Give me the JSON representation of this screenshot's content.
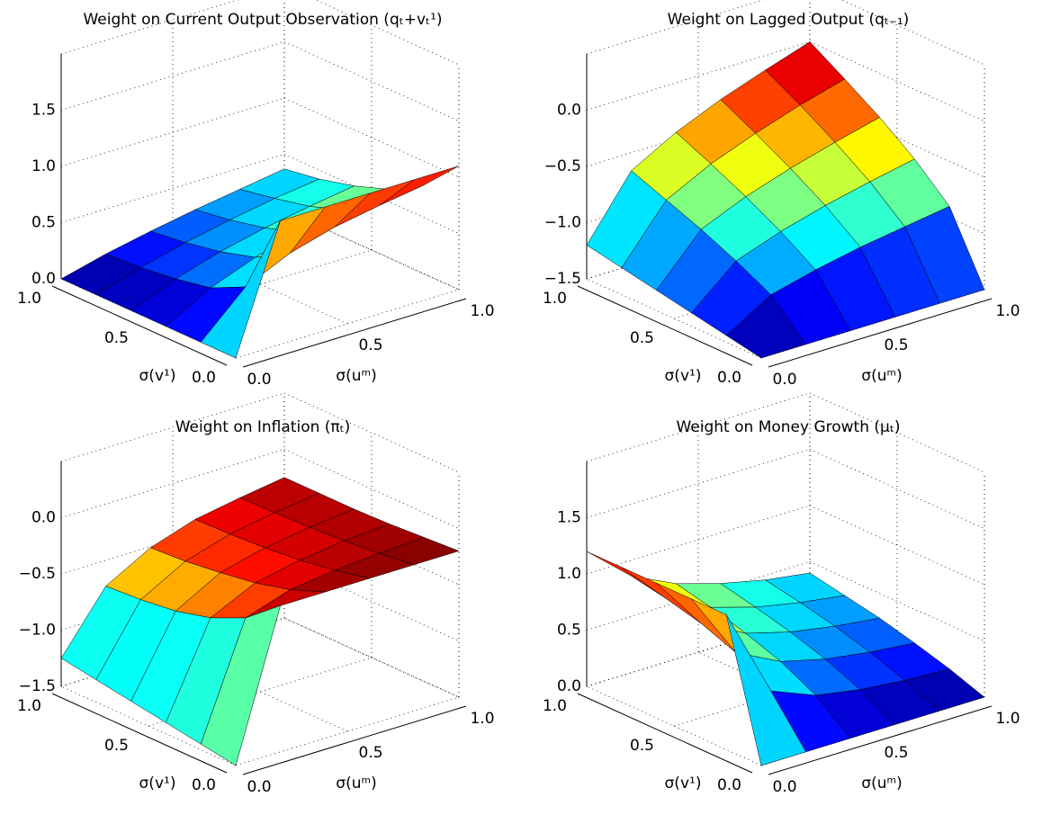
{
  "chart_data": [
    {
      "type": "surface",
      "title": "Weight on Current Output Observation (qₜ+vₜ¹)",
      "xlabel": "σ(uᵐ)",
      "ylabel": "σ(v¹)",
      "colormap": "jet",
      "x": [
        0,
        0.2,
        0.4,
        0.6,
        0.8,
        1
      ],
      "y": [
        0,
        0.2,
        0.4,
        0.6,
        0.8,
        1
      ],
      "z": [
        [
          0,
          1.1,
          1.1,
          1.1,
          1.1,
          1.1
        ],
        [
          0,
          0.37,
          0.55,
          0.66,
          0.73,
          0.79
        ],
        [
          0,
          0.22,
          0.37,
          0.47,
          0.55,
          0.61
        ],
        [
          0,
          0.16,
          0.28,
          0.37,
          0.44,
          0.5
        ],
        [
          0,
          0.12,
          0.22,
          0.3,
          0.37,
          0.42
        ],
        [
          0,
          0.1,
          0.18,
          0.25,
          0.31,
          0.37
        ]
      ],
      "xlim": [
        0,
        1
      ],
      "ylim": [
        0,
        1
      ],
      "zlim": [
        0,
        2
      ],
      "xticks": [
        {
          "value": 0,
          "label": "0.0"
        },
        0.5,
        {
          "value": 1,
          "label": "1.0"
        }
      ],
      "yticks": [
        {
          "value": 0,
          "label": "0.0"
        },
        0.5,
        {
          "value": 1,
          "label": "1.0"
        }
      ],
      "zticks": [
        {
          "value": 0,
          "label": "0.0"
        },
        0.5,
        {
          "value": 1,
          "label": "1.0"
        },
        1.5
      ],
      "grid": true
    },
    {
      "type": "surface",
      "title": "Weight on Lagged Output (qₜ₋₁)",
      "xlabel": "σ(uᵐ)",
      "ylabel": "σ(v¹)",
      "colormap": "jet",
      "x": [
        0,
        0.2,
        0.4,
        0.6,
        0.8,
        1
      ],
      "y": [
        0,
        0.2,
        0.4,
        0.6,
        0.8,
        1
      ],
      "z": [
        [
          -1.5,
          -1.5,
          -1.5,
          -1.5,
          -1.5,
          -1.5
        ],
        [
          -1.44,
          -1.2,
          -1.1,
          -1.02,
          -0.96,
          -0.9
        ],
        [
          -1.38,
          -1.04,
          -0.9,
          -0.79,
          -0.7,
          -0.62
        ],
        [
          -1.32,
          -0.9,
          -0.73,
          -0.6,
          -0.49,
          -0.39
        ],
        [
          -1.26,
          -0.78,
          -0.58,
          -0.43,
          -0.3,
          -0.19
        ],
        [
          -1.2,
          -0.66,
          -0.44,
          -0.27,
          -0.13,
          0
        ]
      ],
      "xlim": [
        0,
        1
      ],
      "ylim": [
        0,
        1
      ],
      "zlim": [
        -1.5,
        0.5
      ],
      "xticks": [
        {
          "value": 0,
          "label": "0.0"
        },
        0.5,
        {
          "value": 1,
          "label": "1.0"
        }
      ],
      "yticks": [
        {
          "value": 0,
          "label": "0.0"
        },
        0.5,
        {
          "value": 1,
          "label": "1.0"
        }
      ],
      "zticks": [
        {
          "value": -1.5,
          "label": "−1.5"
        },
        {
          "value": -1,
          "label": "−1.0"
        },
        {
          "value": -0.5,
          "label": "−0.5"
        },
        {
          "value": 0,
          "label": "0.0"
        }
      ],
      "grid": true
    },
    {
      "type": "surface",
      "title": "Weight on Inflation (πₜ)",
      "xlabel": "σ(uᵐ)",
      "ylabel": "σ(v¹)",
      "colormap": "jet",
      "x": [
        0,
        0.2,
        0.4,
        0.6,
        0.8,
        1
      ],
      "y": [
        0,
        0.2,
        0.4,
        0.6,
        0.8,
        1
      ],
      "z": [
        [
          -1.5,
          -0.2,
          -0.2,
          -0.2,
          -0.2,
          -0.2
        ],
        [
          -1.45,
          -0.45,
          -0.32,
          -0.27,
          -0.24,
          -0.22
        ],
        [
          -1.4,
          -0.59,
          -0.4,
          -0.32,
          -0.27,
          -0.24
        ],
        [
          -1.35,
          -0.67,
          -0.45,
          -0.35,
          -0.29,
          -0.25
        ],
        [
          -1.3,
          -0.71,
          -0.49,
          -0.37,
          -0.3,
          -0.25
        ],
        [
          -1.25,
          -0.73,
          -0.51,
          -0.38,
          -0.31,
          -0.25
        ]
      ],
      "xlim": [
        0,
        1
      ],
      "ylim": [
        0,
        1
      ],
      "zlim": [
        -1.5,
        0.5
      ],
      "xticks": [
        {
          "value": 0,
          "label": "0.0"
        },
        0.5,
        {
          "value": 1,
          "label": "1.0"
        }
      ],
      "yticks": [
        {
          "value": 0,
          "label": "0.0"
        },
        0.5,
        {
          "value": 1,
          "label": "1.0"
        }
      ],
      "zticks": [
        {
          "value": -1.5,
          "label": "−1.5"
        },
        {
          "value": -1,
          "label": "−1.0"
        },
        {
          "value": -0.5,
          "label": "−0.5"
        },
        {
          "value": 0,
          "label": "0.0"
        }
      ],
      "grid": true
    },
    {
      "type": "surface",
      "title": "Weight on Money Growth (μₜ)",
      "xlabel": "σ(uᵐ)",
      "ylabel": "σ(v¹)",
      "colormap": "jet",
      "x": [
        0,
        0.2,
        0.4,
        0.6,
        0.8,
        1
      ],
      "y": [
        0,
        0.2,
        0.4,
        0.6,
        0.8,
        1
      ],
      "z": [
        [
          0,
          0,
          0,
          0,
          0,
          0
        ],
        [
          1.2,
          0.4,
          0.24,
          0.17,
          0.13,
          0.11
        ],
        [
          1.2,
          0.6,
          0.4,
          0.3,
          0.24,
          0.2
        ],
        [
          1.2,
          0.72,
          0.51,
          0.4,
          0.33,
          0.28
        ],
        [
          1.2,
          0.8,
          0.6,
          0.48,
          0.4,
          0.34
        ],
        [
          1.2,
          0.86,
          0.67,
          0.55,
          0.46,
          0.4
        ]
      ],
      "xlim": [
        0,
        1
      ],
      "ylim": [
        0,
        1
      ],
      "zlim": [
        0,
        2
      ],
      "xticks": [
        {
          "value": 0,
          "label": "0.0"
        },
        0.5,
        {
          "value": 1,
          "label": "1.0"
        }
      ],
      "yticks": [
        {
          "value": 0,
          "label": "0.0"
        },
        0.5,
        {
          "value": 1,
          "label": "1.0"
        }
      ],
      "zticks": [
        {
          "value": 0,
          "label": "0.0"
        },
        0.5,
        {
          "value": 1,
          "label": "1.0"
        },
        1.5
      ],
      "grid": true
    }
  ]
}
